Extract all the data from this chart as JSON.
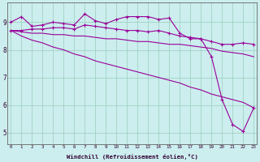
{
  "xlabel": "Windchill (Refroidissement éolien,°C)",
  "x": [
    0,
    1,
    2,
    3,
    4,
    5,
    6,
    7,
    8,
    9,
    10,
    11,
    12,
    13,
    14,
    15,
    16,
    17,
    18,
    19,
    20,
    21,
    22,
    23
  ],
  "line1": [
    9.0,
    9.2,
    8.85,
    8.9,
    9.0,
    8.95,
    8.9,
    9.3,
    9.05,
    8.95,
    9.1,
    9.2,
    9.2,
    9.2,
    9.1,
    9.15,
    8.6,
    8.4,
    8.4,
    7.75,
    6.2,
    5.3,
    5.05,
    5.9
  ],
  "line2": [
    8.7,
    8.7,
    8.75,
    8.75,
    8.8,
    8.8,
    8.75,
    8.9,
    8.85,
    8.8,
    8.75,
    8.7,
    8.7,
    8.65,
    8.7,
    8.6,
    8.5,
    8.45,
    8.4,
    8.3,
    8.2,
    8.2,
    8.25,
    8.2
  ],
  "line3": [
    8.7,
    8.65,
    8.6,
    8.6,
    8.55,
    8.55,
    8.5,
    8.5,
    8.45,
    8.4,
    8.4,
    8.35,
    8.3,
    8.3,
    8.25,
    8.2,
    8.2,
    8.15,
    8.1,
    8.05,
    7.95,
    7.9,
    7.85,
    7.75
  ],
  "line4": [
    8.7,
    8.5,
    8.35,
    8.25,
    8.1,
    8.0,
    7.85,
    7.75,
    7.6,
    7.5,
    7.4,
    7.3,
    7.2,
    7.1,
    7.0,
    6.9,
    6.8,
    6.65,
    6.55,
    6.4,
    6.3,
    6.2,
    6.1,
    5.9
  ],
  "line_color": "#990099",
  "bg_color": "#cceeee",
  "grid_color": "#99ccbb",
  "ylim": [
    4.6,
    9.7
  ],
  "yticks": [
    5,
    6,
    7,
    8,
    9
  ],
  "xticks": [
    0,
    1,
    2,
    3,
    4,
    5,
    6,
    7,
    8,
    9,
    10,
    11,
    12,
    13,
    14,
    15,
    16,
    17,
    18,
    19,
    20,
    21,
    22,
    23
  ]
}
